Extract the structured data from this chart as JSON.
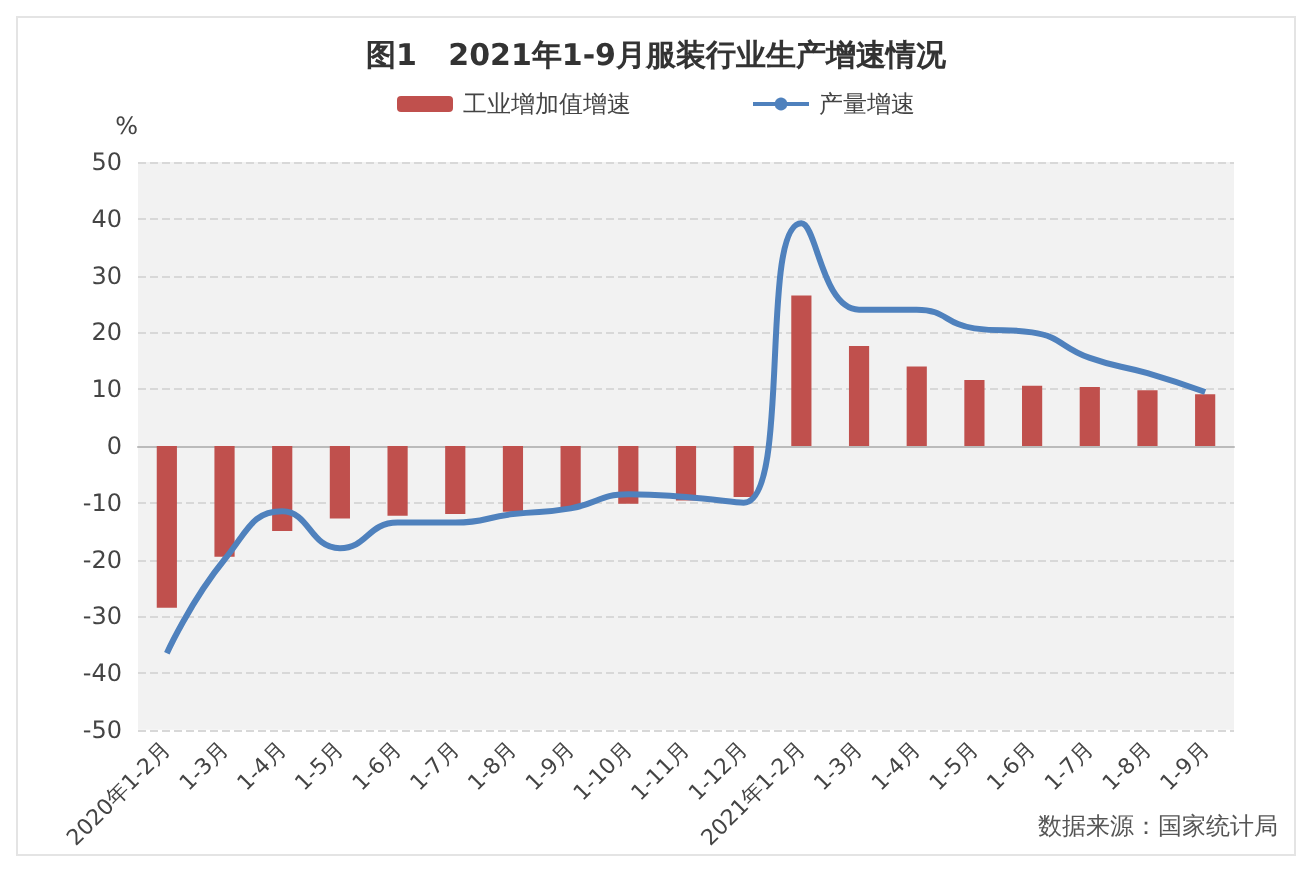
{
  "chart_data": {
    "type": "bar",
    "title": "图1   2021年1-9月服装行业生产增速情况",
    "ylabel": "%",
    "categories": [
      "2020年1-2月",
      "1-3月",
      "1-4月",
      "1-5月",
      "1-6月",
      "1-7月",
      "1-8月",
      "1-9月",
      "1-10月",
      "1-11月",
      "1-12月",
      "2021年1-2月",
      "1-3月",
      "1-4月",
      "1-5月",
      "1-6月",
      "1-7月",
      "1-8月",
      "1-9月"
    ],
    "series": [
      {
        "name": "工业增加值增速",
        "color": "#c0504d",
        "values": [
          -28.5,
          -19.5,
          -15,
          -12.8,
          -12.3,
          -12,
          -11.6,
          -10.8,
          -10.2,
          -9.6,
          -9,
          26.5,
          17.6,
          14,
          11.6,
          10.6,
          10.4,
          9.8,
          9.1
        ]
      },
      {
        "name": "产量增速",
        "type": "line",
        "color": "#4f81bd",
        "values": [
          -36.5,
          -20,
          -11.5,
          -18,
          -13.5,
          -13.5,
          -12,
          -11,
          -8.5,
          -9,
          -10,
          39.2,
          24,
          24,
          20.7,
          20,
          15.5,
          12.8,
          9.5
        ]
      }
    ],
    "ylim": [
      -50,
      50
    ],
    "yticks": [
      -50,
      -40,
      -30,
      -20,
      -10,
      0,
      10,
      20,
      30,
      40,
      50
    ],
    "grid": "y",
    "legend": "top",
    "marker": "none",
    "line_style": "solid",
    "annotations": [
      "数据来源：国家统计局"
    ]
  }
}
